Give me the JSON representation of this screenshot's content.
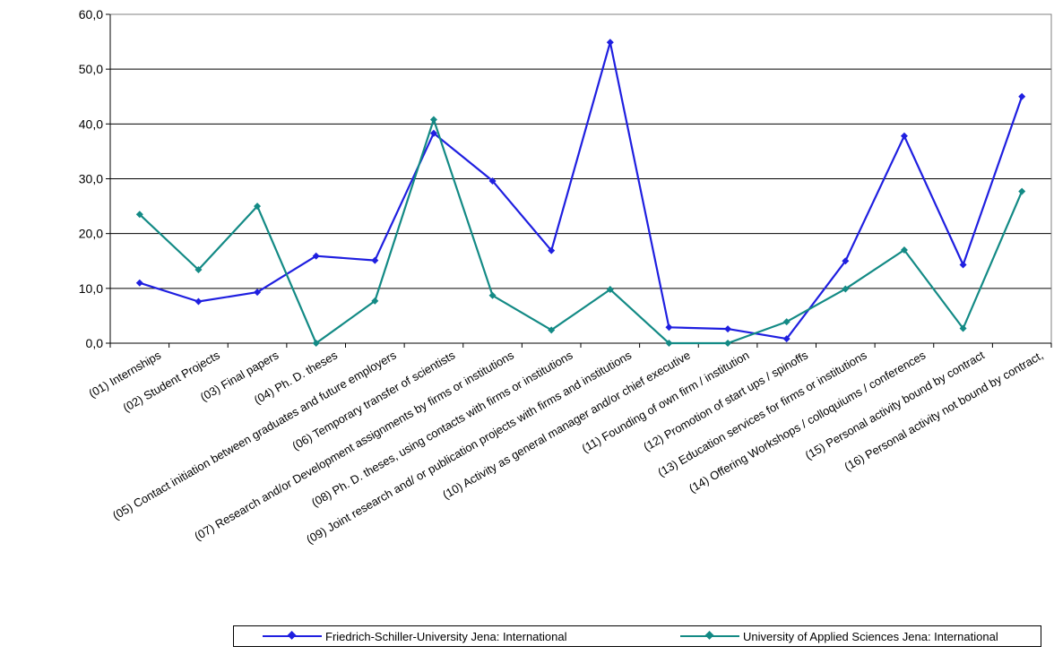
{
  "chart_data": {
    "type": "line",
    "title": "",
    "xlabel": "",
    "ylabel": "",
    "ylim": [
      0,
      60
    ],
    "ytick_step": 10,
    "ytick_labels": [
      "0,0",
      "10,0",
      "20,0",
      "30,0",
      "40,0",
      "50,0",
      "60,0"
    ],
    "grid": "horizontal",
    "legend_position": "bottom",
    "categories": [
      "(01) Internships",
      "(02) Student Projects",
      "(03) Final papers",
      "(04) Ph. D. theses",
      "(05) Contact initiation between graduates and future employers",
      "(06) Temporary transfer of scientists",
      "(07) Research and/or Development assignments by firms or institutions",
      "(08) Ph. D. theses, using contacts with firms or institutions",
      "(09) Joint research and/ or publication projects with firms and institutions",
      "(10) Activity as general manager and/or chief executive",
      "(11) Founding of  own firm / institution",
      "(12) Promotion of start ups / spinoffs",
      "(13) Education services for firms or institutions",
      "(14) Offering Workshops / colloquiums / conferences",
      "(15) Personal activity bound by contract",
      "(16) Personal activity not bound by contract,"
    ],
    "series": [
      {
        "name": "Friedrich-Schiller-University Jena: International",
        "color": "#1f1fe0",
        "values": [
          11.0,
          7.6,
          9.3,
          15.9,
          15.1,
          38.3,
          29.6,
          16.9,
          54.9,
          2.9,
          2.6,
          0.8,
          15.0,
          37.8,
          14.3,
          45.0
        ]
      },
      {
        "name": "University of Applied Sciences Jena: International",
        "color": "#138a85",
        "values": [
          23.5,
          13.4,
          25.0,
          0.0,
          7.7,
          40.8,
          8.7,
          2.4,
          9.8,
          0.0,
          0.0,
          3.9,
          9.9,
          17.0,
          2.7,
          27.7
        ]
      }
    ]
  }
}
